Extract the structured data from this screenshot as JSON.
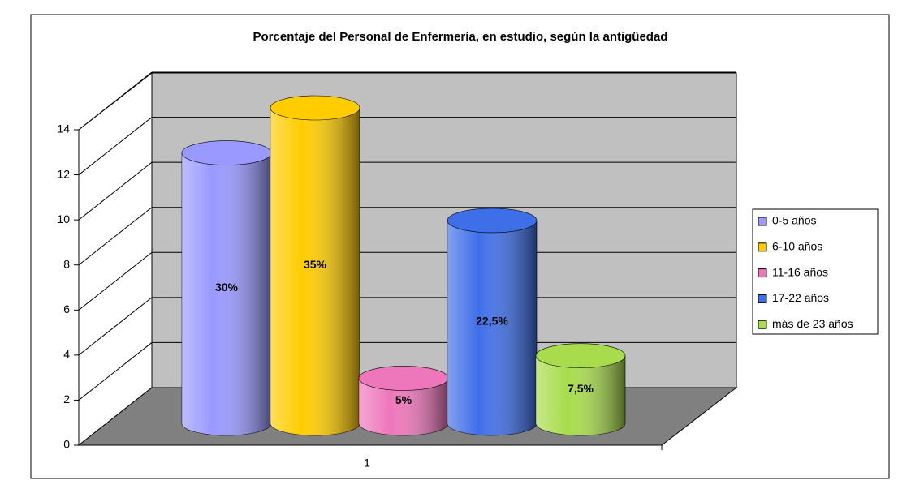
{
  "chart_data": {
    "type": "bar3d-cylinder",
    "title": "Porcentaje del Personal de Enfermería, en estudio, según la antigüedad",
    "categories": [
      "1"
    ],
    "series": [
      {
        "name": "0-5 años",
        "color": "#9999ff",
        "values": [
          12
        ],
        "shares": [
          30
        ],
        "share_labels": [
          "30%"
        ]
      },
      {
        "name": "6-10 años",
        "color": "#ffcc00",
        "values": [
          14
        ],
        "shares": [
          35
        ],
        "share_labels": [
          "35%"
        ]
      },
      {
        "name": "11-16 años",
        "color": "#ee77bb",
        "values": [
          2
        ],
        "shares": [
          5
        ],
        "share_labels": [
          "5%"
        ]
      },
      {
        "name": "17-22 años",
        "color": "#3f6fe8",
        "values": [
          9
        ],
        "shares": [
          22.5
        ],
        "share_labels": [
          "22,5%"
        ]
      },
      {
        "name": "más de 23 años",
        "color": "#a8dc4c",
        "values": [
          3
        ],
        "shares": [
          7.5
        ],
        "share_labels": [
          "7,5%"
        ]
      }
    ],
    "ylim": [
      0,
      14
    ],
    "yticks": [
      0,
      2,
      4,
      6,
      8,
      10,
      12,
      14
    ],
    "grid": true,
    "legend": "right"
  }
}
